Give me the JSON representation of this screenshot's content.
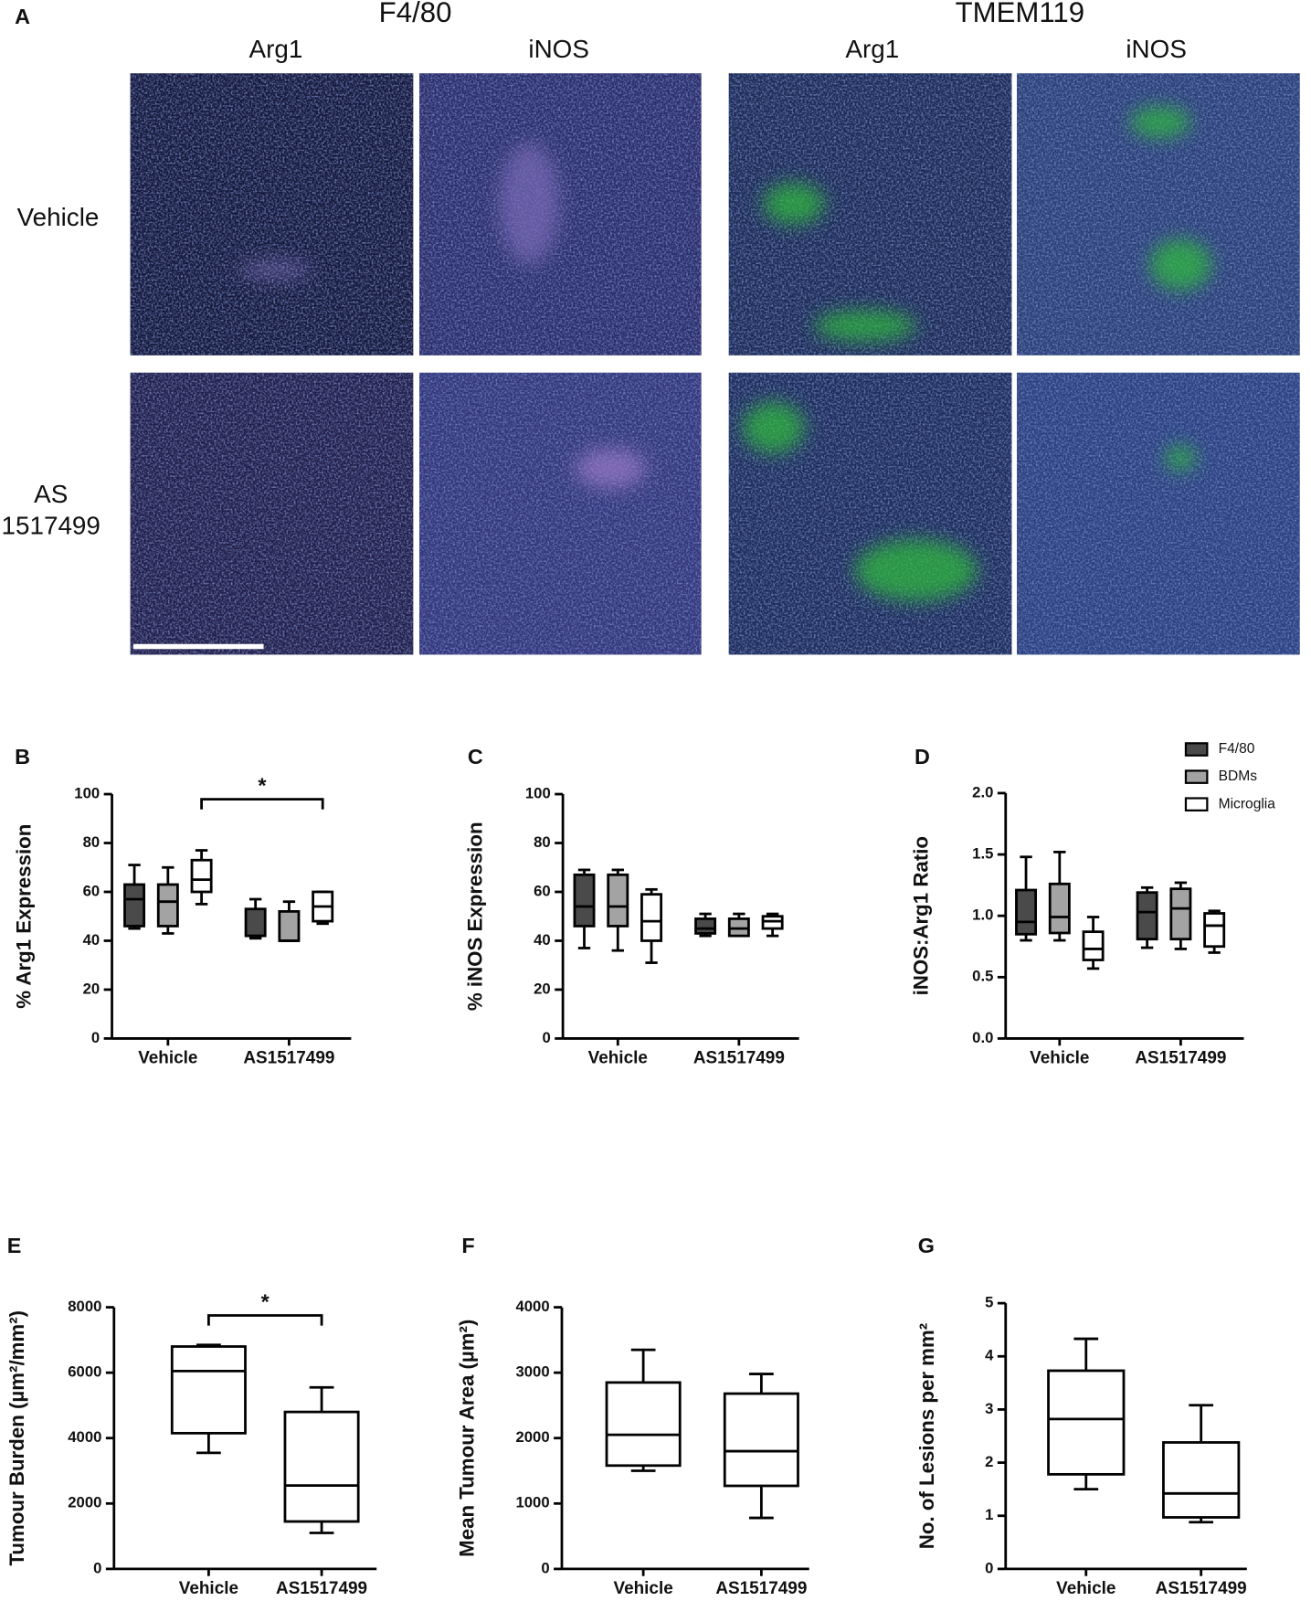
{
  "panel_a": {
    "label": "A",
    "groups": [
      "F4/80",
      "TMEM119"
    ],
    "columns": [
      "Arg1",
      "iNOS",
      "Arg1",
      "iNOS"
    ],
    "rows": [
      [
        "Vehicle"
      ],
      [
        "AS",
        "1517499"
      ]
    ]
  },
  "chart_data": [
    {
      "type": "box",
      "label": "B",
      "ylabel": "% Arg1 Expression",
      "categories": [
        "Vehicle",
        "AS1517499"
      ],
      "ylim": [
        0,
        100
      ],
      "yticks": [
        0,
        20,
        40,
        60,
        80,
        100
      ],
      "annotation": "*",
      "series": [
        {
          "color": "#4a4a4a",
          "values": [
            {
              "min": 45,
              "q1": 46,
              "median": 57,
              "q3": 63,
              "max": 71
            },
            {
              "min": 41,
              "q1": 42,
              "median": 42,
              "q3": 53,
              "max": 57
            }
          ]
        },
        {
          "color": "#a3a3a3",
          "values": [
            {
              "min": 43,
              "q1": 46,
              "median": 56,
              "q3": 63,
              "max": 70
            },
            {
              "min": 40,
              "q1": 40,
              "median": 40,
              "q3": 52,
              "max": 56
            }
          ]
        },
        {
          "color": "#ffffff",
          "values": [
            {
              "min": 55,
              "q1": 60,
              "median": 65,
              "q3": 73,
              "max": 77
            },
            {
              "min": 47,
              "q1": 48,
              "median": 54,
              "q3": 60,
              "max": 60
            }
          ]
        }
      ]
    },
    {
      "type": "box",
      "label": "C",
      "ylabel": "% iNOS Expression",
      "categories": [
        "Vehicle",
        "AS1517499"
      ],
      "ylim": [
        0,
        100
      ],
      "yticks": [
        0,
        20,
        40,
        60,
        80,
        100
      ],
      "series": [
        {
          "color": "#4a4a4a",
          "values": [
            {
              "min": 37,
              "q1": 46,
              "median": 54,
              "q3": 67,
              "max": 69
            },
            {
              "min": 42,
              "q1": 43,
              "median": 45,
              "q3": 49,
              "max": 51
            }
          ]
        },
        {
          "color": "#a3a3a3",
          "values": [
            {
              "min": 36,
              "q1": 46,
              "median": 54,
              "q3": 67,
              "max": 69
            },
            {
              "min": 42,
              "q1": 42,
              "median": 45,
              "q3": 49,
              "max": 51
            }
          ]
        },
        {
          "color": "#ffffff",
          "values": [
            {
              "min": 31,
              "q1": 40,
              "median": 48,
              "q3": 59,
              "max": 61
            },
            {
              "min": 42,
              "q1": 45,
              "median": 48,
              "q3": 50,
              "max": 51
            }
          ]
        }
      ]
    },
    {
      "type": "box",
      "label": "D",
      "ylabel": "iNOS:Arg1 Ratio",
      "categories": [
        "Vehicle",
        "AS1517499"
      ],
      "ylim": [
        0,
        2
      ],
      "yticks": [
        {
          "value": 0,
          "label": "0.0"
        },
        {
          "value": 0.5,
          "label": "0.5"
        },
        {
          "value": 1,
          "label": "1.0"
        },
        {
          "value": 1.5,
          "label": "1.5"
        },
        {
          "value": 2,
          "label": "2.0"
        }
      ],
      "legend": "top-right",
      "series": [
        {
          "name": "F4/80",
          "color": "#4a4a4a",
          "values": [
            {
              "min": 0.8,
              "q1": 0.85,
              "median": 0.95,
              "q3": 1.21,
              "max": 1.48
            },
            {
              "min": 0.74,
              "q1": 0.81,
              "median": 1.03,
              "q3": 1.19,
              "max": 1.23
            }
          ]
        },
        {
          "name": "BDMs",
          "color": "#a3a3a3",
          "values": [
            {
              "min": 0.8,
              "q1": 0.86,
              "median": 0.99,
              "q3": 1.26,
              "max": 1.52
            },
            {
              "min": 0.73,
              "q1": 0.81,
              "median": 1.06,
              "q3": 1.22,
              "max": 1.27
            }
          ]
        },
        {
          "name": "Microglia",
          "color": "#ffffff",
          "values": [
            {
              "min": 0.57,
              "q1": 0.64,
              "median": 0.73,
              "q3": 0.87,
              "max": 0.99
            },
            {
              "min": 0.7,
              "q1": 0.75,
              "median": 0.92,
              "q3": 1.02,
              "max": 1.04
            }
          ]
        }
      ]
    },
    {
      "type": "box",
      "label": "E",
      "ylabel": "Tumour Burden (µm²/mm²)",
      "categories": [
        "Vehicle",
        "AS1517499"
      ],
      "ylim": [
        0,
        8000
      ],
      "yticks": [
        0,
        2000,
        4000,
        6000,
        8000
      ],
      "annotation": "*",
      "color": "#ffffff",
      "values": [
        {
          "min": 3550,
          "q1": 4150,
          "median": 6050,
          "q3": 6800,
          "max": 6850
        },
        {
          "min": 1100,
          "q1": 1450,
          "median": 2550,
          "q3": 4800,
          "max": 5550
        }
      ]
    },
    {
      "type": "box",
      "label": "F",
      "ylabel": "Mean Tumour Area (µm²)",
      "categories": [
        "Vehicle",
        "AS1517499"
      ],
      "ylim": [
        0,
        4000
      ],
      "yticks": [
        0,
        1000,
        2000,
        3000,
        4000
      ],
      "color": "#ffffff",
      "values": [
        {
          "min": 1500,
          "q1": 1580,
          "median": 2050,
          "q3": 2850,
          "max": 3350
        },
        {
          "min": 780,
          "q1": 1270,
          "median": 1800,
          "q3": 2680,
          "max": 2980
        }
      ]
    },
    {
      "type": "box",
      "label": "G",
      "ylabel": "No. of Lesions per mm²",
      "categories": [
        "Vehicle",
        "AS1517499"
      ],
      "ylim": [
        0,
        5
      ],
      "yticks": [
        0,
        1,
        2,
        3,
        4,
        5
      ],
      "color": "#ffffff",
      "values": [
        {
          "min": 1.5,
          "q1": 1.78,
          "median": 2.82,
          "q3": 3.73,
          "max": 4.33
        },
        {
          "min": 0.88,
          "q1": 0.97,
          "median": 1.42,
          "q3": 2.38,
          "max": 3.08
        }
      ]
    }
  ]
}
